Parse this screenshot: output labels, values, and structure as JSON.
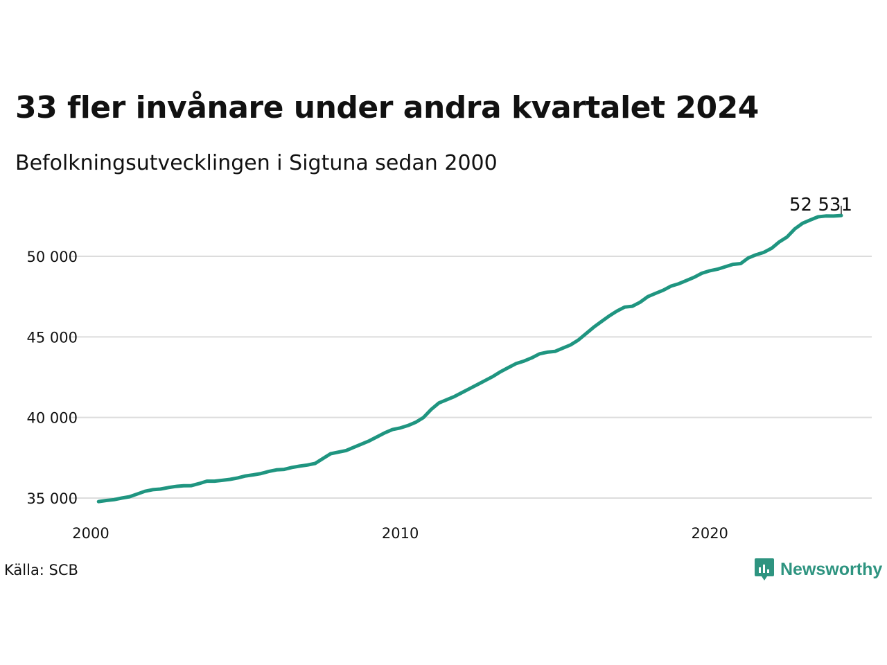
{
  "header": {
    "title": "33 fler invånare under andra kvartalet 2024",
    "subtitle": "Befolkningsutvecklingen i Sigtuna sedan 2000"
  },
  "footer": {
    "source": "Källa: SCB",
    "brand_name": "Newsworthy",
    "brand_icon": "newsworthy-logo-icon",
    "brand_color": "#2e9480"
  },
  "colors": {
    "line": "#1f9580",
    "grid": "#dcdcdc"
  },
  "chart_data": {
    "type": "line",
    "title": "33 fler invånare under andra kvartalet 2024",
    "subtitle": "Befolkningsutvecklingen i Sigtuna sedan 2000",
    "xlabel": "",
    "ylabel": "",
    "xlim": [
      2000.0,
      2025.0
    ],
    "ylim": [
      34900,
      53000
    ],
    "x_ticks": [
      2000,
      2010,
      2020
    ],
    "x_tick_labels": [
      "2000",
      "2010",
      "2020"
    ],
    "y_ticks": [
      35000,
      40000,
      45000,
      50000
    ],
    "y_tick_labels": [
      "35 000",
      "40 000",
      "45 000",
      "50 000"
    ],
    "grid": "horizontal",
    "end_label": "52 531",
    "series": [
      {
        "x": [
          2000.25,
          2000.5,
          2000.75,
          2001.0,
          2001.25,
          2001.5,
          2001.75,
          2002.0,
          2002.25,
          2002.5,
          2002.75,
          2003.0,
          2003.25,
          2003.5,
          2003.75,
          2004.0,
          2004.25,
          2004.5,
          2004.75,
          2005.0,
          2005.25,
          2005.5,
          2005.75,
          2006.0,
          2006.25,
          2006.5,
          2006.75,
          2007.0,
          2007.25,
          2007.5,
          2007.75,
          2008.0,
          2008.25,
          2008.5,
          2008.75,
          2009.0,
          2009.25,
          2009.5,
          2009.75,
          2010.0,
          2010.25,
          2010.5,
          2010.75,
          2011.0,
          2011.25,
          2011.5,
          2011.75,
          2012.0,
          2012.25,
          2012.5,
          2012.75,
          2013.0,
          2013.25,
          2013.5,
          2013.75,
          2014.0,
          2014.25,
          2014.5,
          2014.75,
          2015.0,
          2015.25,
          2015.5,
          2015.75,
          2016.0,
          2016.25,
          2016.5,
          2016.75,
          2017.0,
          2017.25,
          2017.5,
          2017.75,
          2018.0,
          2018.25,
          2018.5,
          2018.75,
          2019.0,
          2019.25,
          2019.5,
          2019.75,
          2020.0,
          2020.25,
          2020.5,
          2020.75,
          2021.0,
          2021.25,
          2021.5,
          2021.75,
          2022.0,
          2022.25,
          2022.5,
          2022.75,
          2023.0,
          2023.25,
          2023.5,
          2023.75,
          2024.0,
          2024.25
        ],
        "values": [
          34780,
          34850,
          34900,
          35000,
          35080,
          35250,
          35420,
          35520,
          35560,
          35650,
          35720,
          35760,
          35770,
          35900,
          36050,
          36050,
          36100,
          36160,
          36250,
          36370,
          36440,
          36520,
          36650,
          36750,
          36780,
          36900,
          36980,
          37050,
          37150,
          37450,
          37750,
          37850,
          37950,
          38150,
          38350,
          38550,
          38800,
          39050,
          39250,
          39350,
          39500,
          39700,
          40000,
          40500,
          40900,
          41100,
          41300,
          41550,
          41800,
          42050,
          42300,
          42550,
          42850,
          43100,
          43350,
          43500,
          43700,
          43950,
          44050,
          44100,
          44300,
          44500,
          44800,
          45200,
          45600,
          45950,
          46300,
          46600,
          46850,
          46900,
          47150,
          47500,
          47700,
          47900,
          48150,
          48300,
          48500,
          48700,
          48950,
          49100,
          49200,
          49350,
          49500,
          49550,
          49900,
          50100,
          50250,
          50500,
          50900,
          51200,
          51700,
          52050,
          52250,
          52450,
          52500,
          52498,
          52531
        ]
      }
    ]
  }
}
